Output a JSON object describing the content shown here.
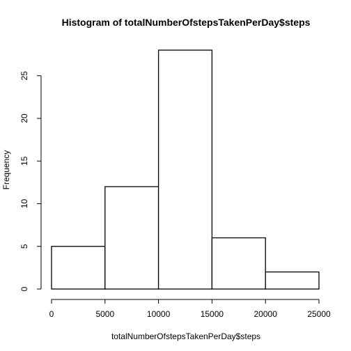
{
  "chart_data": {
    "type": "bar",
    "title": "Histogram of totalNumberOfstepsTakenPerDay$steps",
    "xlabel": "totalNumberOfstepsTakenPerDay$steps",
    "ylabel": "Frequency",
    "bins": [
      {
        "from": 0,
        "to": 5000,
        "count": 5
      },
      {
        "from": 5000,
        "to": 10000,
        "count": 12
      },
      {
        "from": 10000,
        "to": 15000,
        "count": 28
      },
      {
        "from": 15000,
        "to": 20000,
        "count": 6
      },
      {
        "from": 20000,
        "to": 25000,
        "count": 2
      }
    ],
    "xlim": [
      0,
      25000
    ],
    "ylim": [
      0,
      28
    ],
    "x_ticks": [
      "0",
      "5000",
      "10000",
      "15000",
      "20000",
      "25000"
    ],
    "y_ticks": [
      "0",
      "5",
      "10",
      "15",
      "20",
      "25"
    ],
    "grid": false,
    "legend": "none",
    "bar_fill": "#ffffff",
    "bar_stroke": "#000000"
  }
}
